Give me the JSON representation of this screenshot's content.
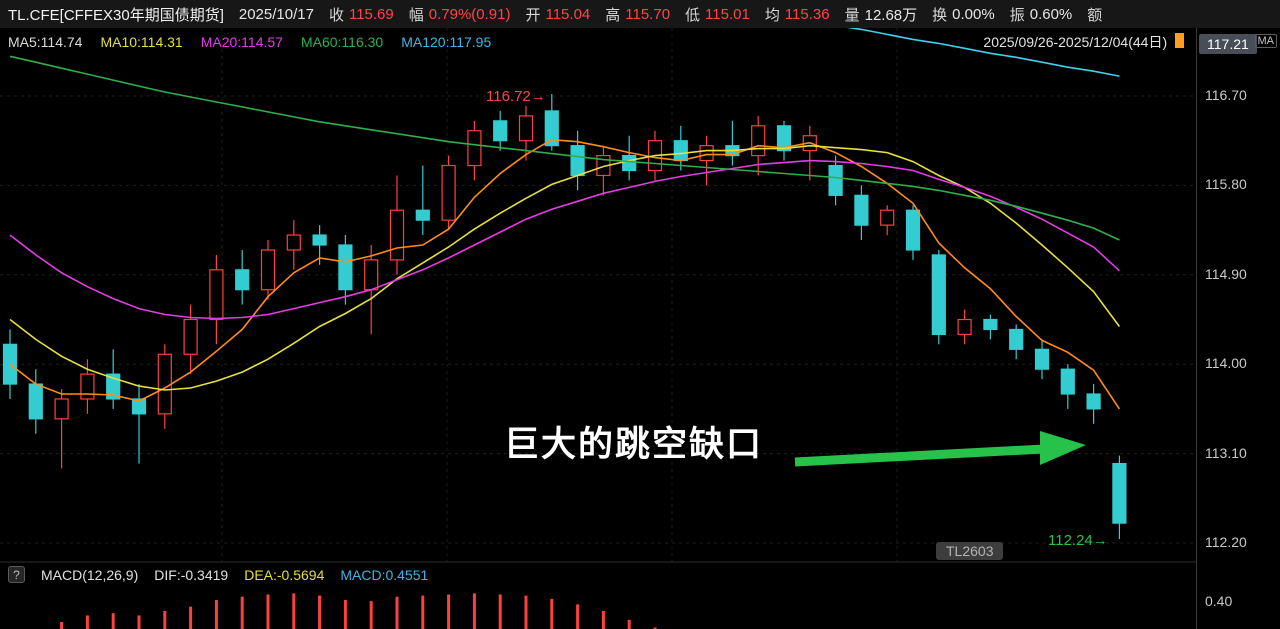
{
  "header": {
    "symbol": "TL.CFE[CFFEX30年期国债期货]",
    "date": "2025/10/17",
    "stats": [
      {
        "key": "close",
        "label": "收",
        "value": "115.69",
        "color": "#ff4545"
      },
      {
        "key": "change",
        "label": "幅",
        "value": "0.79%(0.91)",
        "color": "#ff4545"
      },
      {
        "key": "open",
        "label": "开",
        "value": "115.04",
        "color": "#ff4545"
      },
      {
        "key": "high",
        "label": "高",
        "value": "115.70",
        "color": "#ff4545"
      },
      {
        "key": "low",
        "label": "低",
        "value": "115.01",
        "color": "#ff4545"
      },
      {
        "key": "avg",
        "label": "均",
        "value": "115.36",
        "color": "#ff4545"
      },
      {
        "key": "volume",
        "label": "量",
        "value": "12.68万",
        "color": "#e6e6e6"
      },
      {
        "key": "turnover",
        "label": "换",
        "value": "0.00%",
        "color": "#e6e6e6"
      },
      {
        "key": "amplitude",
        "label": "振",
        "value": "0.60%",
        "color": "#e6e6e6"
      },
      {
        "key": "amount",
        "label": "额",
        "value": "",
        "color": "#e6e6e6"
      }
    ]
  },
  "ma_legend": {
    "items": [
      {
        "key": "ma5",
        "label": "MA5:114.74",
        "color": "#d8d8d8"
      },
      {
        "key": "ma10",
        "label": "MA10:114.31",
        "color": "#e6df3d"
      },
      {
        "key": "ma20",
        "label": "MA20:114.57",
        "color": "#e23ee2"
      },
      {
        "key": "ma60",
        "label": "MA60:116.30",
        "color": "#2faf4a"
      },
      {
        "key": "ma120",
        "label": "MA120:117.95",
        "color": "#3fb4e6"
      }
    ],
    "range_label": "2025/09/26-2025/12/04(44日)",
    "dropdown_icon": "▼"
  },
  "price_axis": {
    "highlight": "117.21",
    "corner_badge": "MA",
    "ticks": [
      {
        "text": "116.70",
        "price": 116.7
      },
      {
        "text": "115.80",
        "price": 115.8
      },
      {
        "text": "114.90",
        "price": 114.9
      },
      {
        "text": "114.00",
        "price": 114.0
      },
      {
        "text": "113.10",
        "price": 113.1
      },
      {
        "text": "112.20",
        "price": 112.2
      }
    ],
    "macd_tick": "0.40"
  },
  "annotations": {
    "peak": "116.72→",
    "low": "112.24→",
    "gap_text": "巨大的跳空缺口",
    "contract": "TL2603"
  },
  "macd_panel": {
    "help_icon": "?",
    "name": {
      "label": "MACD(12,26,9)",
      "color": "#e0e0e0"
    },
    "dif": {
      "label": "DIF:-0.3419",
      "color": "#e0e0e0"
    },
    "dea": {
      "label": "DEA:-0.5694",
      "color": "#e6df3d"
    },
    "macd": {
      "label": "MACD:0.4551",
      "color": "#3fb4e6"
    }
  },
  "chart_data": {
    "type": "candlestick",
    "title": "TL.CFE CFFEX30年期国债期货",
    "visible_range": "2025/09/26-2025/12/04",
    "days": 44,
    "price_axis_ticks": [
      117.21,
      116.7,
      115.8,
      114.9,
      114.0,
      113.1,
      112.2
    ],
    "annotated_high": 116.72,
    "annotated_low": 112.24,
    "up_color": "#ff4040",
    "down_color": "#33cdd1",
    "candles": [
      [
        114.2,
        114.35,
        113.65,
        113.8
      ],
      [
        113.8,
        113.95,
        113.3,
        113.45
      ],
      [
        113.45,
        113.75,
        112.95,
        113.65
      ],
      [
        113.65,
        114.05,
        113.5,
        113.9
      ],
      [
        113.9,
        114.15,
        113.55,
        113.65
      ],
      [
        113.65,
        113.8,
        113.0,
        113.5
      ],
      [
        113.5,
        114.2,
        113.35,
        114.1
      ],
      [
        114.1,
        114.6,
        113.9,
        114.45
      ],
      [
        114.45,
        115.1,
        114.2,
        114.95
      ],
      [
        114.95,
        115.15,
        114.6,
        114.75
      ],
      [
        114.75,
        115.25,
        114.65,
        115.15
      ],
      [
        115.15,
        115.45,
        114.95,
        115.3
      ],
      [
        115.3,
        115.4,
        115.0,
        115.2
      ],
      [
        115.2,
        115.3,
        114.6,
        114.75
      ],
      [
        114.75,
        115.2,
        114.3,
        115.05
      ],
      [
        115.05,
        115.9,
        114.9,
        115.55
      ],
      [
        115.55,
        116.0,
        115.3,
        115.45
      ],
      [
        115.45,
        116.1,
        115.35,
        116.0
      ],
      [
        116.0,
        116.45,
        115.85,
        116.35
      ],
      [
        116.45,
        116.55,
        116.15,
        116.25
      ],
      [
        116.25,
        116.6,
        116.05,
        116.5
      ],
      [
        116.55,
        116.72,
        116.15,
        116.2
      ],
      [
        116.2,
        116.35,
        115.75,
        115.9
      ],
      [
        115.9,
        116.2,
        115.7,
        116.1
      ],
      [
        116.1,
        116.3,
        115.85,
        115.95
      ],
      [
        115.95,
        116.35,
        115.85,
        116.25
      ],
      [
        116.25,
        116.4,
        115.95,
        116.05
      ],
      [
        116.05,
        116.3,
        115.8,
        116.2
      ],
      [
        116.2,
        116.45,
        116.0,
        116.1
      ],
      [
        116.1,
        116.5,
        115.9,
        116.4
      ],
      [
        116.4,
        116.45,
        116.05,
        116.15
      ],
      [
        116.15,
        116.4,
        115.85,
        116.3
      ],
      [
        116.0,
        116.1,
        115.6,
        115.7
      ],
      [
        115.7,
        115.8,
        115.25,
        115.4
      ],
      [
        115.4,
        115.6,
        115.3,
        115.55
      ],
      [
        115.55,
        115.6,
        115.05,
        115.15
      ],
      [
        115.1,
        115.15,
        114.2,
        114.3
      ],
      [
        114.3,
        114.55,
        114.2,
        114.45
      ],
      [
        114.45,
        114.5,
        114.25,
        114.35
      ],
      [
        114.35,
        114.4,
        114.05,
        114.15
      ],
      [
        114.15,
        114.25,
        113.85,
        113.95
      ],
      [
        113.95,
        114.0,
        113.55,
        113.7
      ],
      [
        113.7,
        113.8,
        113.4,
        113.55
      ],
      [
        113.0,
        113.08,
        112.24,
        112.4
      ]
    ],
    "ma_series": [
      {
        "name": "MA5",
        "color": "#ff8c1a",
        "values": [
          114.0,
          113.8,
          113.7,
          113.7,
          113.69,
          113.63,
          113.76,
          113.92,
          114.13,
          114.35,
          114.68,
          114.92,
          115.07,
          115.03,
          115.09,
          115.17,
          115.2,
          115.36,
          115.68,
          115.92,
          116.11,
          116.26,
          116.24,
          116.19,
          116.13,
          116.08,
          116.05,
          116.11,
          116.11,
          116.2,
          116.18,
          116.23,
          116.13,
          115.99,
          115.82,
          115.62,
          115.22,
          114.97,
          114.76,
          114.48,
          114.24,
          114.12,
          113.94,
          113.55
        ]
      },
      {
        "name": "MA10",
        "color": "#e6df3d",
        "values": [
          114.45,
          114.25,
          114.08,
          113.95,
          113.86,
          113.78,
          113.74,
          113.76,
          113.83,
          113.92,
          114.05,
          114.21,
          114.38,
          114.51,
          114.66,
          114.86,
          115.02,
          115.18,
          115.36,
          115.52,
          115.67,
          115.81,
          115.9,
          115.99,
          116.05,
          116.1,
          116.12,
          116.15,
          116.15,
          116.17,
          116.17,
          116.2,
          116.18,
          116.16,
          116.13,
          116.04,
          115.9,
          115.78,
          115.62,
          115.42,
          115.2,
          114.97,
          114.73,
          114.38
        ]
      },
      {
        "name": "MA20",
        "color": "#e23ee2",
        "values": [
          115.3,
          115.1,
          114.92,
          114.78,
          114.66,
          114.56,
          114.5,
          114.47,
          114.46,
          114.47,
          114.5,
          114.56,
          114.62,
          114.68,
          114.75,
          114.85,
          114.95,
          115.07,
          115.2,
          115.33,
          115.46,
          115.56,
          115.64,
          115.72,
          115.78,
          115.84,
          115.89,
          115.93,
          115.97,
          116.01,
          116.03,
          116.05,
          116.04,
          116.02,
          115.99,
          115.95,
          115.86,
          115.78,
          115.69,
          115.58,
          115.46,
          115.32,
          115.18,
          114.94
        ]
      },
      {
        "name": "MA60",
        "color": "#2faf4a",
        "values": [
          117.1,
          117.04,
          116.98,
          116.92,
          116.86,
          116.8,
          116.74,
          116.69,
          116.64,
          116.59,
          116.54,
          116.49,
          116.44,
          116.4,
          116.36,
          116.32,
          116.28,
          116.24,
          116.21,
          116.18,
          116.15,
          116.12,
          116.09,
          116.06,
          116.04,
          116.02,
          116.0,
          115.98,
          115.96,
          115.94,
          115.92,
          115.9,
          115.88,
          115.85,
          115.82,
          115.79,
          115.75,
          115.7,
          115.65,
          115.59,
          115.52,
          115.45,
          115.37,
          115.25
        ]
      },
      {
        "name": "MA120",
        "color": "#40d0e8",
        "values": [
          118.9,
          118.85,
          118.81,
          118.76,
          118.71,
          118.67,
          118.62,
          118.57,
          118.53,
          118.48,
          118.44,
          118.39,
          118.34,
          118.3,
          118.25,
          118.2,
          118.16,
          118.11,
          118.06,
          118.02,
          117.97,
          117.92,
          117.88,
          117.83,
          117.78,
          117.74,
          117.69,
          117.65,
          117.6,
          117.55,
          117.51,
          117.46,
          117.41,
          117.37,
          117.32,
          117.27,
          117.23,
          117.18,
          117.13,
          117.09,
          117.04,
          116.99,
          116.95,
          116.9
        ]
      }
    ],
    "macd_hist": {
      "color": "#ff4040",
      "values": [
        0.05,
        0.12,
        0.2,
        0.26,
        0.28,
        0.26,
        0.3,
        0.34,
        0.4,
        0.43,
        0.45,
        0.46,
        0.44,
        0.4,
        0.39,
        0.43,
        0.44,
        0.45,
        0.46,
        0.45,
        0.44,
        0.41,
        0.36,
        0.3,
        0.22,
        0.15,
        0.1,
        0.08,
        0.06,
        0.05,
        0.04,
        0.03,
        0.02,
        0.01,
        0,
        0,
        0,
        0,
        0,
        0,
        0,
        0,
        0,
        0
      ]
    }
  }
}
